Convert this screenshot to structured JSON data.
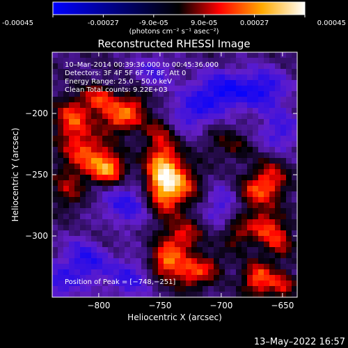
{
  "colorbar": {
    "tick_labels": [
      "-0.00045",
      "-0.00027",
      "-9.0e-05",
      "9.0e-05",
      "0.00027",
      "0.00045"
    ],
    "tick_values": [
      -0.00045,
      -0.00027,
      -9e-05,
      9e-05,
      0.00027,
      0.00045
    ],
    "range": [
      -0.00045,
      0.00045
    ],
    "units_label": "(photons cm⁻² s⁻¹ asec⁻²)",
    "colors": [
      "#0000ff",
      "#000000",
      "#ff0000",
      "#ffaa00",
      "#ffffff"
    ]
  },
  "plot": {
    "title": "Reconstructed RHESSI Image",
    "annotations": [
      "10–Mar–2014 00:39:36.000 to 00:45:36.000",
      "Detectors: 3F 4F 5F 6F 7F 8F, Att 0",
      "Energy Range: 25.0 – 50.0 keV",
      "Clean    Total counts: 9.22E+03"
    ],
    "peak_label": "Position of Peak = [−748,−251]",
    "footer_timestamp": "13–May–2022 16:57"
  },
  "chart_data": {
    "type": "heatmap",
    "title": "Reconstructed RHESSI Image",
    "xlabel": "Heliocentric X (arcsec)",
    "ylabel": "Heliocentric Y (arcsec)",
    "xlim": [
      -838,
      -638
    ],
    "ylim": [
      -350,
      -150
    ],
    "x_ticks": [
      -800,
      -750,
      -700,
      -650
    ],
    "x_tick_labels": [
      "−800",
      "−750",
      "−700",
      "−650"
    ],
    "y_ticks": [
      -200,
      -250,
      -300
    ],
    "y_tick_labels": [
      "−200",
      "−250",
      "−300"
    ],
    "peak": [
      -748,
      -251
    ],
    "sources": [
      {
        "x": -748,
        "y": -251,
        "amp": 0.00045,
        "sx": 10,
        "sy": 22
      },
      {
        "x": -733,
        "y": -258,
        "amp": 0.00026,
        "sx": 12,
        "sy": 12
      },
      {
        "x": -782,
        "y": -203,
        "amp": 0.00032,
        "sx": 12,
        "sy": 9
      },
      {
        "x": -800,
        "y": -188,
        "amp": 0.00026,
        "sx": 10,
        "sy": 8
      },
      {
        "x": -822,
        "y": -205,
        "amp": 0.0003,
        "sx": 10,
        "sy": 12
      },
      {
        "x": -810,
        "y": -232,
        "amp": 0.00028,
        "sx": 14,
        "sy": 12
      },
      {
        "x": -792,
        "y": -246,
        "amp": 0.00036,
        "sx": 10,
        "sy": 9
      },
      {
        "x": -825,
        "y": -262,
        "amp": 0.00018,
        "sx": 10,
        "sy": 12
      },
      {
        "x": -770,
        "y": -190,
        "amp": 0.00015,
        "sx": 8,
        "sy": 8
      },
      {
        "x": -730,
        "y": -300,
        "amp": 0.00025,
        "sx": 10,
        "sy": 9
      },
      {
        "x": -745,
        "y": -320,
        "amp": 0.00034,
        "sx": 9,
        "sy": 10
      },
      {
        "x": -725,
        "y": -330,
        "amp": 0.00027,
        "sx": 10,
        "sy": 10
      },
      {
        "x": -708,
        "y": -325,
        "amp": 0.00015,
        "sx": 8,
        "sy": 8
      },
      {
        "x": -660,
        "y": -255,
        "amp": 0.00028,
        "sx": 10,
        "sy": 12
      },
      {
        "x": -675,
        "y": -265,
        "amp": 0.0002,
        "sx": 9,
        "sy": 9
      },
      {
        "x": -665,
        "y": -292,
        "amp": 0.00026,
        "sx": 10,
        "sy": 10
      },
      {
        "x": -652,
        "y": -305,
        "amp": 0.0002,
        "sx": 8,
        "sy": 10
      },
      {
        "x": -688,
        "y": -298,
        "amp": 0.00018,
        "sx": 8,
        "sy": 10
      },
      {
        "x": -670,
        "y": -335,
        "amp": 0.00032,
        "sx": 9,
        "sy": 10
      },
      {
        "x": -650,
        "y": -340,
        "amp": 0.00022,
        "sx": 8,
        "sy": 8
      },
      {
        "x": -795,
        "y": -298,
        "amp": 8e-05,
        "sx": 10,
        "sy": 10
      },
      {
        "x": -703,
        "y": -222,
        "amp": 0.0001,
        "sx": 10,
        "sy": 10
      },
      {
        "x": -686,
        "y": -228,
        "amp": 0.0001,
        "sx": 8,
        "sy": 8
      },
      {
        "x": -752,
        "y": -213,
        "amp": 0.0001,
        "sx": 8,
        "sy": 8
      },
      {
        "x": -700,
        "y": -182,
        "amp": -0.00028,
        "sx": 16,
        "sy": 12
      },
      {
        "x": -665,
        "y": -180,
        "amp": -0.00025,
        "sx": 14,
        "sy": 12
      },
      {
        "x": -725,
        "y": -200,
        "amp": -0.0002,
        "sx": 14,
        "sy": 12
      },
      {
        "x": -778,
        "y": -275,
        "amp": -0.00022,
        "sx": 16,
        "sy": 14
      },
      {
        "x": -810,
        "y": -320,
        "amp": -0.00024,
        "sx": 14,
        "sy": 14
      },
      {
        "x": -775,
        "y": -335,
        "amp": -0.0002,
        "sx": 12,
        "sy": 12
      },
      {
        "x": -700,
        "y": -275,
        "amp": -0.00018,
        "sx": 10,
        "sy": 12
      },
      {
        "x": -652,
        "y": -215,
        "amp": -0.0002,
        "sx": 12,
        "sy": 12
      },
      {
        "x": -835,
        "y": -340,
        "amp": -0.00018,
        "sx": 12,
        "sy": 12
      },
      {
        "x": -755,
        "y": -165,
        "amp": -0.00016,
        "sx": 12,
        "sy": 10
      }
    ]
  }
}
